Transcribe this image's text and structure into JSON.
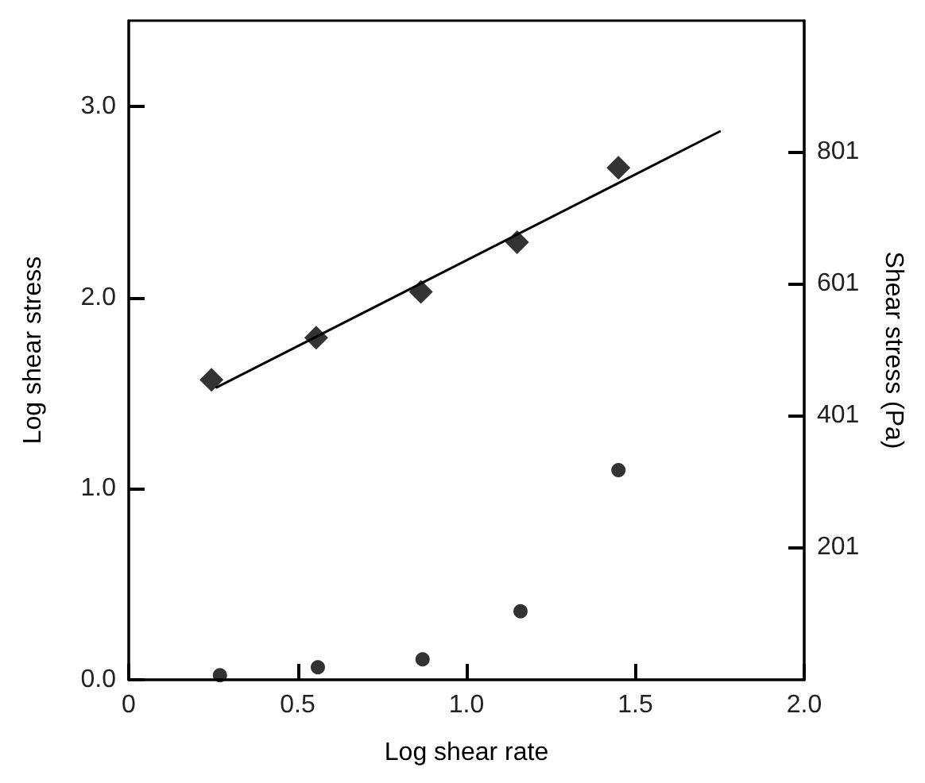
{
  "chart_data": {
    "type": "scatter",
    "xlabel": "Log shear rate",
    "ylabel": "Log shear stress",
    "y2label": "Shear stress (Pa)",
    "xlim": [
      0,
      2
    ],
    "xticks": [
      0,
      {
        "value": 0.5,
        "label": "0.5"
      },
      {
        "value": 1,
        "label": "1.0"
      },
      {
        "value": 1.5,
        "label": "1.5"
      },
      {
        "value": 2,
        "label": "2.0"
      }
    ],
    "ylim": [
      0,
      3.45
    ],
    "yticks": [
      {
        "value": 0,
        "label": "0.0"
      },
      {
        "value": 1,
        "label": "1.0"
      },
      {
        "value": 2,
        "label": "2.0"
      },
      {
        "value": 3,
        "label": "3.0"
      }
    ],
    "y2lim": [
      0,
      1000
    ],
    "y2ticks": [
      201,
      401,
      601,
      801
    ],
    "grid": false,
    "series": [
      {
        "marker": "diamond",
        "color": "#000000",
        "x": [
          0.245,
          0.555,
          0.865,
          1.15,
          1.45
        ],
        "values": [
          1.57,
          1.79,
          2.03,
          2.29,
          2.68
        ]
      },
      {
        "type": "line",
        "marker": "none",
        "line_style": "solid",
        "color": "#000000",
        "x": [
          0.26,
          1.75
        ],
        "values": [
          1.53,
          2.87
        ]
      },
      {
        "marker": "circle",
        "axis": "y2",
        "color": "#000000",
        "x": [
          0.27,
          0.56,
          0.87,
          1.16,
          1.45
        ],
        "values": [
          7,
          19,
          31,
          104,
          318
        ]
      }
    ]
  }
}
